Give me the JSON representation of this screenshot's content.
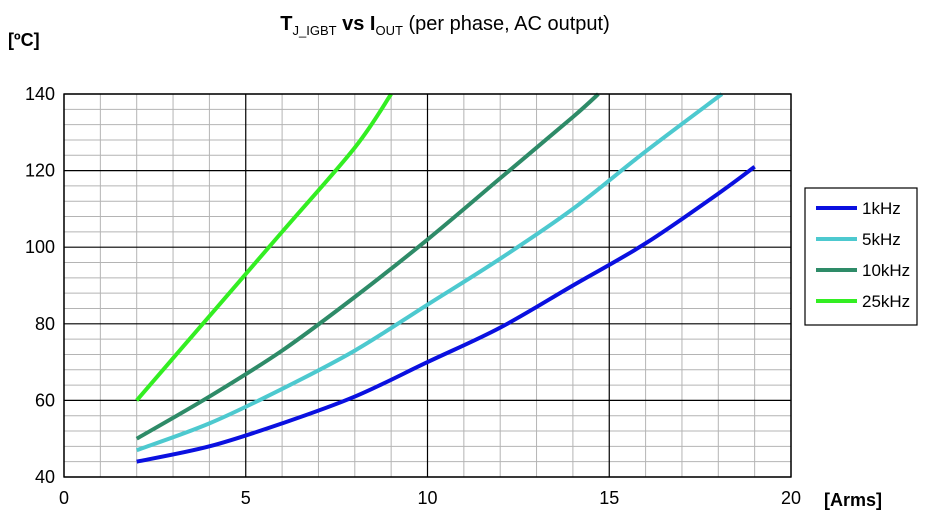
{
  "chart_data": {
    "type": "line",
    "title": {
      "t": "T",
      "t_sub": "J_IGBT",
      "vs": " vs ",
      "i": "I",
      "i_sub": "OUT",
      "rest": " (per phase, AC output)"
    },
    "ylabel": "[ºC]",
    "xlabel": "[Arms]",
    "xlim": [
      0,
      20
    ],
    "ylim": [
      40,
      140
    ],
    "xticks": [
      0,
      5,
      10,
      15,
      20
    ],
    "yticks": [
      40,
      60,
      80,
      100,
      120,
      140
    ],
    "grid": true,
    "legend_position": "right",
    "series": [
      {
        "name": "1kHz",
        "color": "#0a10e0",
        "x": [
          2,
          4,
          6,
          8,
          10,
          12,
          14,
          16,
          18,
          19
        ],
        "y": [
          44,
          48,
          54,
          61,
          70,
          79,
          90,
          101,
          114,
          121
        ]
      },
      {
        "name": "5kHz",
        "color": "#4dc9cf",
        "x": [
          2,
          4,
          6,
          8,
          10,
          12,
          14,
          16,
          18.1
        ],
        "y": [
          47,
          54,
          63,
          73,
          85,
          97,
          110,
          125,
          140
        ]
      },
      {
        "name": "10kHz",
        "color": "#2e8b68",
        "x": [
          2,
          4,
          6,
          8,
          10,
          12,
          14,
          14.7
        ],
        "y": [
          50,
          61,
          73,
          87,
          102,
          118,
          134,
          140
        ]
      },
      {
        "name": "25kHz",
        "color": "#33ee22",
        "x": [
          2,
          4,
          6,
          8,
          9
        ],
        "y": [
          60,
          82,
          104,
          126,
          140
        ]
      }
    ]
  }
}
